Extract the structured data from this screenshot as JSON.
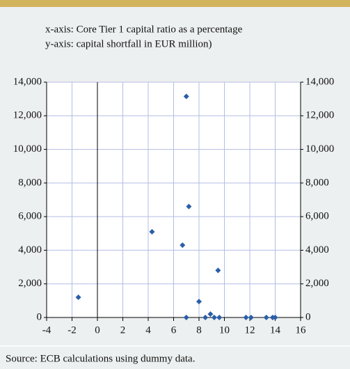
{
  "chart_data": {
    "type": "scatter",
    "subtitle": [
      "x-axis: Core Tier 1 capital ratio as a percentage",
      "y-axis: capital shortfall in EUR million)"
    ],
    "source": "Source: ECB calculations using dummy data.",
    "color": "#2a5ea8",
    "grid": true,
    "grid_color": "#b3bde3",
    "x": [
      -1.5,
      4.3,
      7.0,
      7.2,
      6.7,
      7.0,
      8.0,
      8.5,
      8.9,
      9.5,
      9.2,
      9.6,
      11.7,
      12.1,
      13.3,
      13.8,
      14.0
    ],
    "values": [
      1200,
      5100,
      13150,
      6600,
      4300,
      0,
      950,
      0,
      200,
      2800,
      0,
      0,
      0,
      0,
      0,
      0,
      0
    ],
    "xlim": [
      -4,
      16
    ],
    "xticks": [
      -4,
      -2,
      0,
      2,
      4,
      6,
      8,
      10,
      12,
      14,
      16
    ],
    "ylim": [
      0,
      14000
    ],
    "yticks": [
      0,
      {
        "value": 2000,
        "label": "2,000"
      },
      {
        "value": 4000,
        "label": "4,000"
      },
      {
        "value": 6000,
        "label": "6,000"
      },
      {
        "value": 8000,
        "label": "8,000"
      },
      {
        "value": 10000,
        "label": "10,000"
      },
      {
        "value": 12000,
        "label": "12,000"
      },
      {
        "value": 14000,
        "label": "14,000"
      }
    ]
  }
}
